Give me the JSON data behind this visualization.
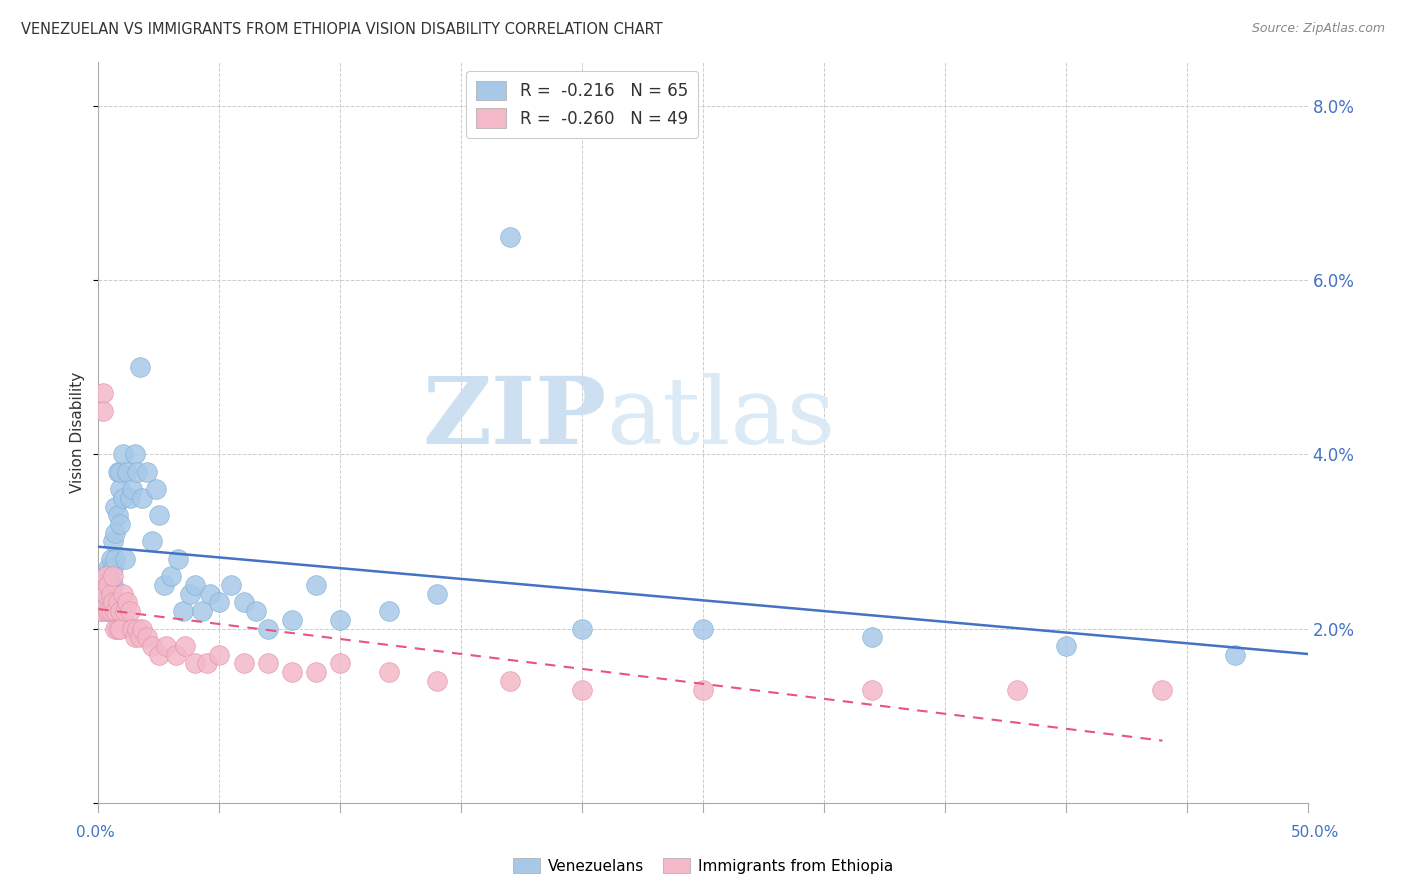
{
  "title": "VENEZUELAN VS IMMIGRANTS FROM ETHIOPIA VISION DISABILITY CORRELATION CHART",
  "source": "Source: ZipAtlas.com",
  "ylabel": "Vision Disability",
  "xlim": [
    0.0,
    0.5
  ],
  "ylim": [
    0.0,
    0.085
  ],
  "yticks": [
    0.0,
    0.02,
    0.04,
    0.06,
    0.08
  ],
  "ytick_labels": [
    "",
    "2.0%",
    "4.0%",
    "6.0%",
    "8.0%"
  ],
  "blue_color": "#a8c8e8",
  "pink_color": "#f4b8c8",
  "blue_line_color": "#4472C4",
  "pink_line_color": "#E8547A",
  "watermark_zip": "ZIP",
  "watermark_atlas": "atlas",
  "venezuelans_x": [
    0.001,
    0.001,
    0.001,
    0.002,
    0.002,
    0.002,
    0.003,
    0.003,
    0.003,
    0.004,
    0.004,
    0.004,
    0.005,
    0.005,
    0.005,
    0.005,
    0.006,
    0.006,
    0.006,
    0.007,
    0.007,
    0.007,
    0.008,
    0.008,
    0.009,
    0.009,
    0.009,
    0.01,
    0.01,
    0.011,
    0.012,
    0.013,
    0.014,
    0.015,
    0.016,
    0.017,
    0.018,
    0.02,
    0.022,
    0.024,
    0.025,
    0.027,
    0.03,
    0.033,
    0.035,
    0.038,
    0.04,
    0.043,
    0.046,
    0.05,
    0.055,
    0.06,
    0.065,
    0.07,
    0.08,
    0.09,
    0.1,
    0.12,
    0.14,
    0.17,
    0.2,
    0.25,
    0.32,
    0.4,
    0.47
  ],
  "venezuelans_y": [
    0.025,
    0.022,
    0.023,
    0.024,
    0.026,
    0.023,
    0.022,
    0.025,
    0.024,
    0.022,
    0.024,
    0.027,
    0.028,
    0.025,
    0.022,
    0.023,
    0.03,
    0.027,
    0.025,
    0.031,
    0.034,
    0.028,
    0.038,
    0.033,
    0.036,
    0.032,
    0.038,
    0.04,
    0.035,
    0.028,
    0.038,
    0.035,
    0.036,
    0.04,
    0.038,
    0.05,
    0.035,
    0.038,
    0.03,
    0.036,
    0.033,
    0.025,
    0.026,
    0.028,
    0.022,
    0.024,
    0.025,
    0.022,
    0.024,
    0.023,
    0.025,
    0.023,
    0.022,
    0.02,
    0.021,
    0.025,
    0.021,
    0.022,
    0.024,
    0.065,
    0.02,
    0.02,
    0.019,
    0.018,
    0.017
  ],
  "ethiopia_x": [
    0.001,
    0.001,
    0.002,
    0.002,
    0.003,
    0.003,
    0.004,
    0.004,
    0.005,
    0.005,
    0.006,
    0.006,
    0.007,
    0.007,
    0.008,
    0.008,
    0.009,
    0.009,
    0.01,
    0.011,
    0.012,
    0.013,
    0.014,
    0.015,
    0.016,
    0.017,
    0.018,
    0.02,
    0.022,
    0.025,
    0.028,
    0.032,
    0.036,
    0.04,
    0.045,
    0.05,
    0.06,
    0.07,
    0.08,
    0.09,
    0.1,
    0.12,
    0.14,
    0.17,
    0.2,
    0.25,
    0.32,
    0.38,
    0.44
  ],
  "ethiopia_y": [
    0.025,
    0.022,
    0.047,
    0.045,
    0.026,
    0.024,
    0.025,
    0.022,
    0.024,
    0.022,
    0.026,
    0.023,
    0.022,
    0.02,
    0.023,
    0.02,
    0.022,
    0.02,
    0.024,
    0.022,
    0.023,
    0.022,
    0.02,
    0.019,
    0.02,
    0.019,
    0.02,
    0.019,
    0.018,
    0.017,
    0.018,
    0.017,
    0.018,
    0.016,
    0.016,
    0.017,
    0.016,
    0.016,
    0.015,
    0.015,
    0.016,
    0.015,
    0.014,
    0.014,
    0.013,
    0.013,
    0.013,
    0.013,
    0.013
  ]
}
